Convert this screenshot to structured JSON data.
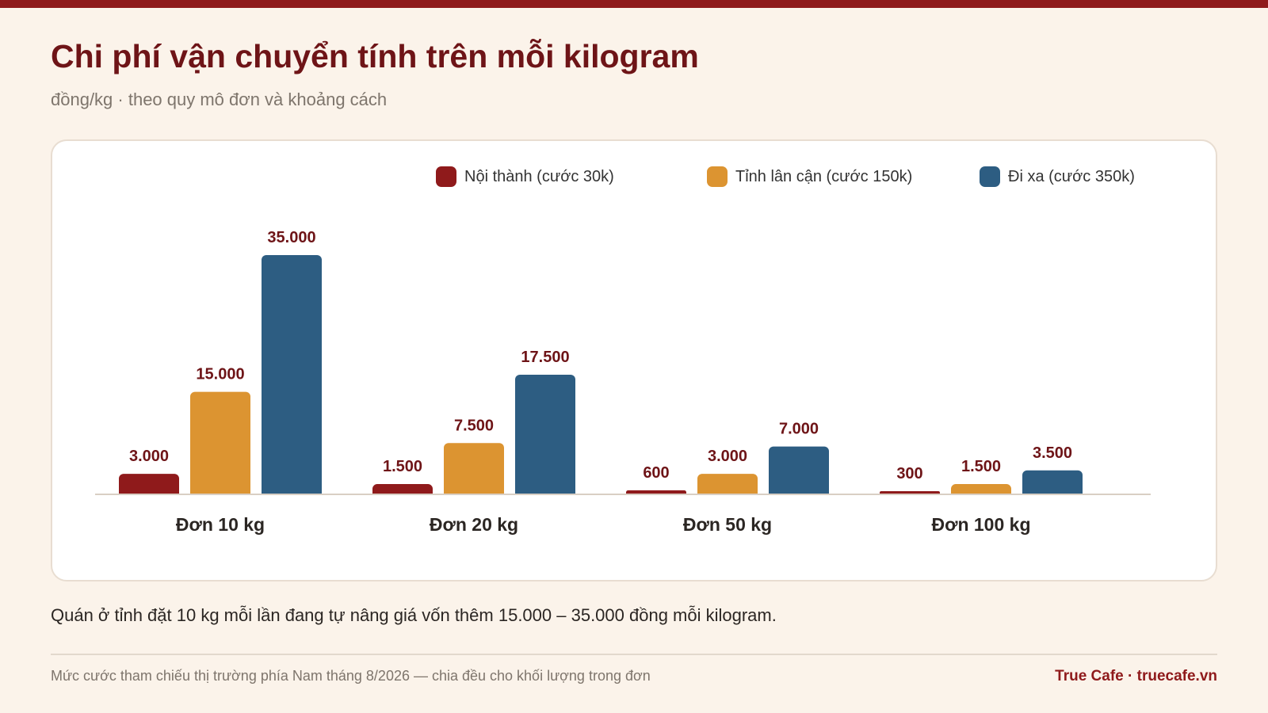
{
  "header": {
    "title": "Chi phí vận chuyển tính trên mỗi kilogram",
    "subtitle": "đồng/kg · theo quy mô đơn và khoảng cách"
  },
  "colors": {
    "background": "#fbf3ea",
    "accent": "#8f1a1b",
    "noi_thanh": "#8f1a1b",
    "tinh_lan_can": "#dc9431",
    "di_xa": "#2d5d82"
  },
  "chart_data": {
    "type": "bar",
    "categories": [
      "Đơn 10 kg",
      "Đơn 20 kg",
      "Đơn 50 kg",
      "Đơn 100 kg"
    ],
    "series": [
      {
        "name": "Nội thành (cước 30k)",
        "values": [
          3000,
          1500,
          600,
          300
        ],
        "labels": [
          "3.000",
          "1.500",
          "600",
          "300"
        ],
        "color": "#8f1a1b"
      },
      {
        "name": "Tỉnh lân cận (cước 150k)",
        "values": [
          15000,
          7500,
          3000,
          1500
        ],
        "labels": [
          "15.000",
          "7.500",
          "3.000",
          "1.500"
        ],
        "color": "#dc9431"
      },
      {
        "name": "Đi xa (cước 350k)",
        "values": [
          35000,
          17500,
          7000,
          3500
        ],
        "labels": [
          "35.000",
          "17.500",
          "7.000",
          "3.500"
        ],
        "color": "#2d5d82"
      }
    ],
    "ylim": [
      0,
      35000
    ],
    "xlabel": "",
    "ylabel": "",
    "grid": false,
    "legend": "top-right"
  },
  "takeaway": "Quán ở tỉnh đặt 10 kg mỗi lần đang tự nâng giá vốn thêm 15.000 – 35.000 đồng mỗi kilogram.",
  "footer": {
    "note": "Mức cước tham chiếu thị trường phía Nam tháng 8/2026 — chia đều cho khối lượng trong đơn",
    "brand": "True Cafe · truecafe.vn"
  }
}
